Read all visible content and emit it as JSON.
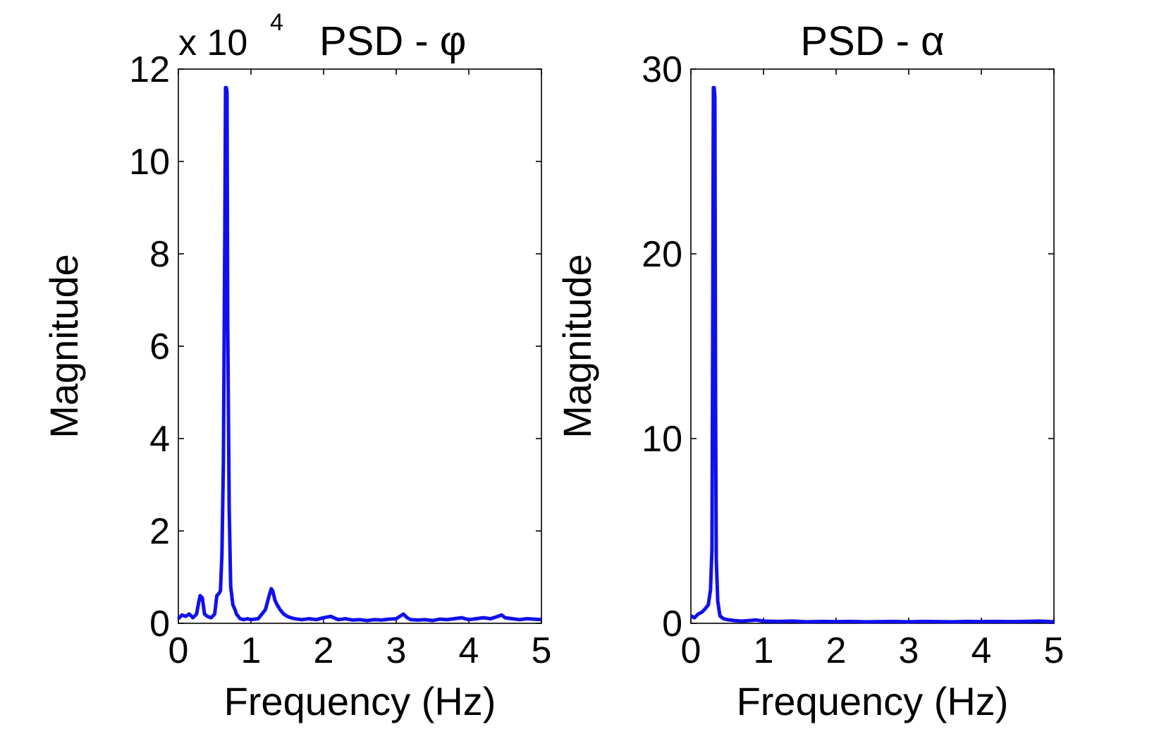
{
  "chart_data": [
    {
      "type": "line",
      "title": "PSD - φ",
      "xlabel": "Frequency (Hz)",
      "ylabel": "Magnitude",
      "exponent_label": "x 10",
      "exponent_power": "4",
      "xlim": [
        0,
        5
      ],
      "ylim": [
        0,
        12
      ],
      "xticks": [
        "0",
        "1",
        "2",
        "3",
        "4",
        "5"
      ],
      "yticks": [
        "0",
        "2",
        "4",
        "6",
        "8",
        "10",
        "12"
      ],
      "grid": false,
      "color": "#1010ee",
      "series": [
        {
          "x": [
            0,
            0.05,
            0.1,
            0.15,
            0.2,
            0.25,
            0.28,
            0.3,
            0.33,
            0.36,
            0.4,
            0.45,
            0.5,
            0.53,
            0.56,
            0.58,
            0.6,
            0.62,
            0.64,
            0.65,
            0.66,
            0.67,
            0.68,
            0.7,
            0.72,
            0.75,
            0.78,
            0.8,
            0.85,
            0.9,
            0.95,
            1.0,
            1.1,
            1.2,
            1.25,
            1.28,
            1.3,
            1.33,
            1.36,
            1.4,
            1.45,
            1.5,
            1.55,
            1.6,
            1.7,
            1.8,
            1.9,
            2.0,
            2.1,
            2.2,
            2.3,
            2.4,
            2.5,
            2.6,
            2.7,
            2.8,
            2.9,
            3.0,
            3.05,
            3.1,
            3.15,
            3.2,
            3.3,
            3.4,
            3.5,
            3.6,
            3.7,
            3.8,
            3.9,
            4.0,
            4.1,
            4.2,
            4.3,
            4.4,
            4.45,
            4.5,
            4.6,
            4.7,
            4.8,
            4.9,
            5.0
          ],
          "values": [
            0.1,
            0.18,
            0.15,
            0.2,
            0.12,
            0.2,
            0.45,
            0.6,
            0.55,
            0.2,
            0.15,
            0.12,
            0.2,
            0.6,
            0.65,
            0.7,
            1.5,
            3.5,
            8.5,
            11.6,
            11.6,
            11.5,
            6.5,
            2.5,
            0.8,
            0.4,
            0.3,
            0.2,
            0.1,
            0.08,
            0.1,
            0.08,
            0.1,
            0.3,
            0.6,
            0.75,
            0.7,
            0.5,
            0.4,
            0.3,
            0.2,
            0.15,
            0.12,
            0.1,
            0.08,
            0.1,
            0.08,
            0.12,
            0.15,
            0.08,
            0.1,
            0.07,
            0.08,
            0.06,
            0.08,
            0.07,
            0.09,
            0.1,
            0.15,
            0.2,
            0.12,
            0.08,
            0.07,
            0.08,
            0.06,
            0.09,
            0.08,
            0.1,
            0.12,
            0.08,
            0.1,
            0.12,
            0.1,
            0.15,
            0.18,
            0.12,
            0.1,
            0.08,
            0.1,
            0.09,
            0.08
          ]
        }
      ]
    },
    {
      "type": "line",
      "title": "PSD - α",
      "xlabel": "Frequency (Hz)",
      "ylabel": "Magnitude",
      "xlim": [
        0,
        5
      ],
      "ylim": [
        0,
        30
      ],
      "xticks": [
        "0",
        "1",
        "2",
        "3",
        "4",
        "5"
      ],
      "yticks": [
        "0",
        "10",
        "20",
        "30"
      ],
      "grid": false,
      "color": "#1010ee",
      "series": [
        {
          "x": [
            0,
            0.05,
            0.1,
            0.15,
            0.2,
            0.24,
            0.27,
            0.29,
            0.3,
            0.31,
            0.32,
            0.33,
            0.34,
            0.35,
            0.37,
            0.4,
            0.45,
            0.5,
            0.6,
            0.7,
            0.8,
            0.9,
            1.0,
            1.2,
            1.4,
            1.6,
            1.8,
            2.0,
            2.2,
            2.4,
            2.6,
            2.8,
            3.0,
            3.2,
            3.4,
            3.6,
            3.8,
            4.0,
            4.2,
            4.4,
            4.6,
            4.8,
            5.0
          ],
          "values": [
            0.4,
            0.3,
            0.5,
            0.6,
            0.8,
            1.0,
            1.8,
            4.0,
            15.0,
            29.0,
            29.0,
            28.5,
            12.0,
            3.5,
            1.2,
            0.4,
            0.25,
            0.2,
            0.15,
            0.12,
            0.15,
            0.18,
            0.12,
            0.1,
            0.12,
            0.08,
            0.1,
            0.09,
            0.1,
            0.08,
            0.09,
            0.1,
            0.08,
            0.1,
            0.09,
            0.08,
            0.1,
            0.09,
            0.1,
            0.09,
            0.1,
            0.12,
            0.08
          ]
        }
      ]
    }
  ]
}
